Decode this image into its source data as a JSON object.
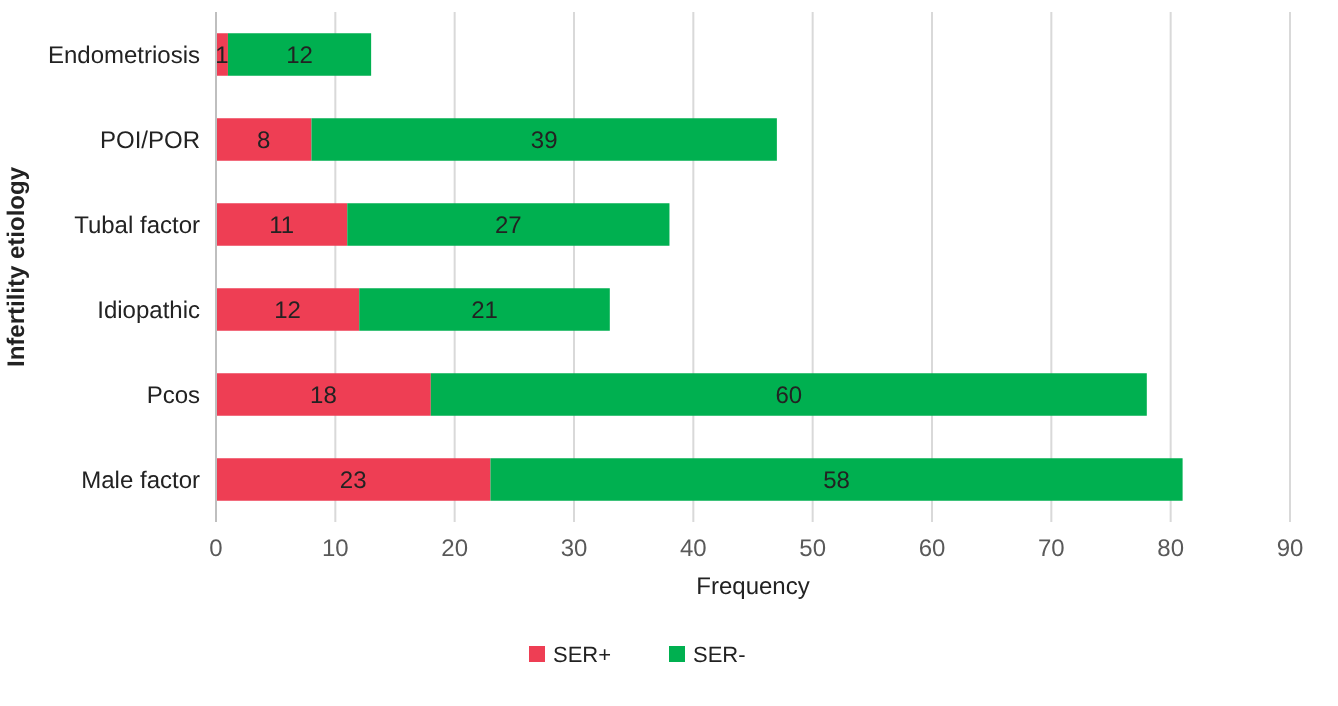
{
  "chart_data": {
    "type": "bar",
    "orientation": "horizontal",
    "stacked": true,
    "xlabel": "Frequency",
    "ylabel": "Infertility etiology",
    "categories": [
      "Endometriosis",
      "POI/POR",
      "Tubal factor",
      "Idiopathic",
      "Pcos",
      "Male factor"
    ],
    "series": [
      {
        "name": "SER+",
        "color": "#ee3e54",
        "values": [
          1,
          8,
          11,
          12,
          18,
          23
        ]
      },
      {
        "name": "SER-",
        "color": "#00b050",
        "values": [
          12,
          39,
          27,
          21,
          60,
          58
        ]
      }
    ],
    "xlim": [
      0,
      90
    ],
    "xticks": [
      0,
      10,
      20,
      30,
      40,
      50,
      60,
      70,
      80,
      90
    ],
    "grid": "x",
    "legend": "bottom",
    "data_labels": true
  }
}
